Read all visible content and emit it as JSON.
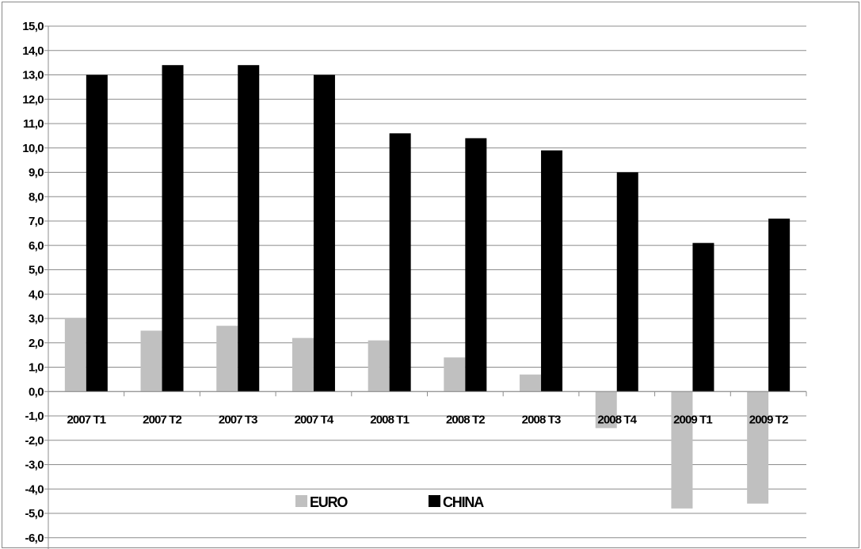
{
  "chart_data": {
    "type": "bar",
    "categories": [
      "2007 T1",
      "2007 T2",
      "2007 T3",
      "2007 T4",
      "2008 T1",
      "2008 T2",
      "2008 T3",
      "2008 T4",
      "2009 T1",
      "2009 T2"
    ],
    "series": [
      {
        "name": "EURO",
        "color": "#c0c0c0",
        "values": [
          3.0,
          2.5,
          2.7,
          2.2,
          2.1,
          1.4,
          0.7,
          -1.5,
          -4.8,
          -4.6
        ]
      },
      {
        "name": "CHINA",
        "color": "#000000",
        "values": [
          13.0,
          13.4,
          13.4,
          13.0,
          10.6,
          10.4,
          9.9,
          9.0,
          6.1,
          7.1
        ]
      }
    ],
    "yticks": [
      "15,0",
      "14,0",
      "13,0",
      "12,0",
      "11,0",
      "10,0",
      "9,0",
      "8,0",
      "7,0",
      "6,0",
      "5,0",
      "4,0",
      "3,0",
      "2,0",
      "1,0",
      "0,0",
      "-1,0",
      "-2,0",
      "-3,0",
      "-4,0",
      "-5,0",
      "-6,0"
    ],
    "ylim": [
      -6,
      15
    ],
    "grid": true,
    "legend": "bottom-center",
    "title": "",
    "xlabel": "",
    "ylabel": ""
  }
}
